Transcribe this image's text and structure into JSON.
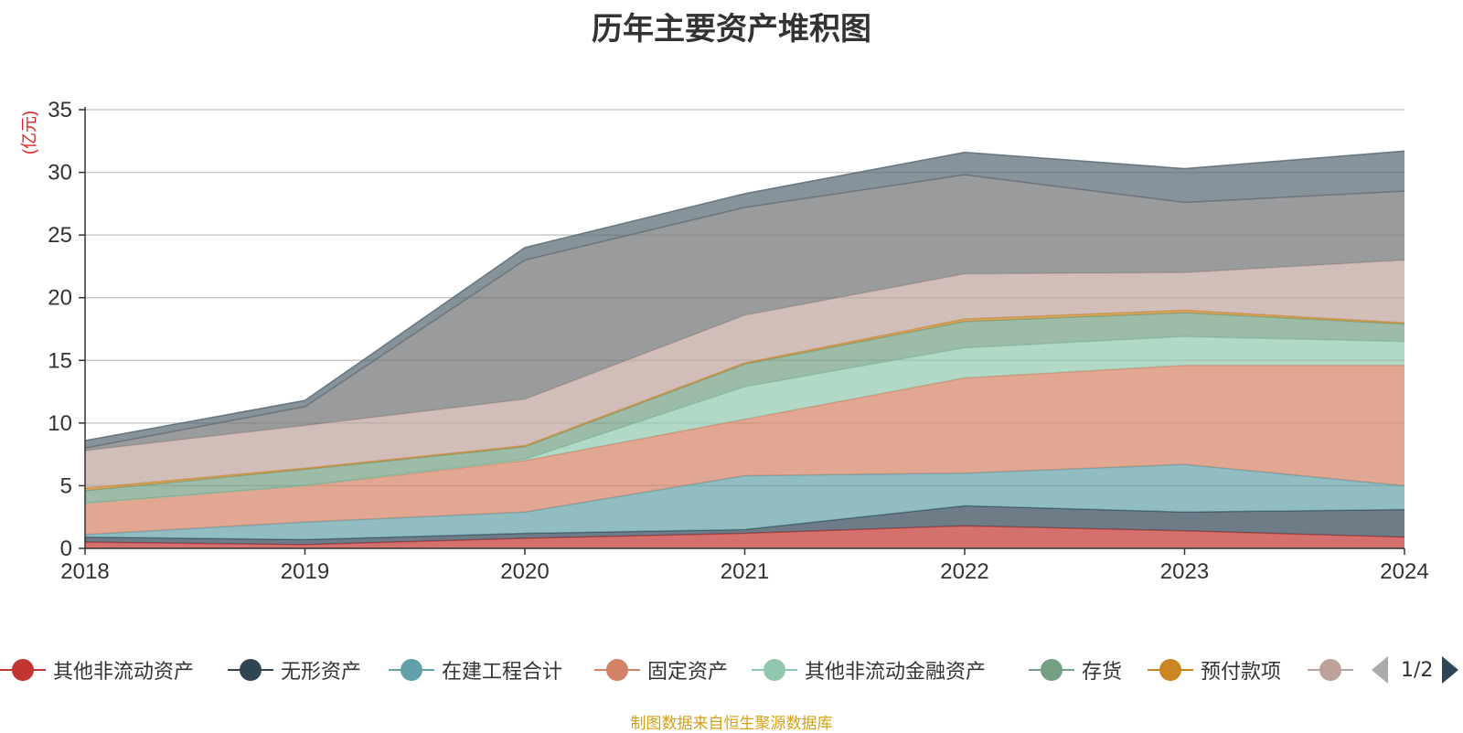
{
  "chart_data": {
    "type": "area",
    "stacked": true,
    "title": "历年主要资产堆积图",
    "unit_label": "(亿元)",
    "x": [
      "2018",
      "2019",
      "2020",
      "2021",
      "2022",
      "2023",
      "2024"
    ],
    "ylim": [
      0,
      35
    ],
    "yticks": [
      "0",
      "5",
      "10",
      "15",
      "20",
      "25",
      "30",
      "35"
    ],
    "grid": true,
    "legend_position": "bottom",
    "series": [
      {
        "name": "其他非流动资产",
        "color": "#c23531",
        "values": [
          0.5,
          0.3,
          0.8,
          1.2,
          1.8,
          1.4,
          0.9
        ]
      },
      {
        "name": "无形资产",
        "color": "#2f4554",
        "values": [
          0.4,
          0.4,
          0.4,
          0.3,
          1.6,
          1.5,
          2.2
        ]
      },
      {
        "name": "在建工程合计",
        "color": "#61a0a8",
        "values": [
          0.2,
          1.4,
          1.7,
          4.3,
          2.6,
          3.8,
          1.9
        ]
      },
      {
        "name": "固定资产",
        "color": "#d48265",
        "values": [
          2.5,
          2.9,
          4.1,
          4.5,
          7.6,
          7.9,
          9.6
        ]
      },
      {
        "name": "其他非流动金融资产",
        "color": "#91c7ae",
        "values": [
          0.0,
          0.0,
          0.1,
          2.6,
          2.4,
          2.3,
          1.9
        ]
      },
      {
        "name": "存货",
        "color": "#749f83",
        "values": [
          1.0,
          1.3,
          1.0,
          1.8,
          2.1,
          1.9,
          1.4
        ]
      },
      {
        "name": "预付款项",
        "color": "#ca8622",
        "values": [
          0.2,
          0.1,
          0.1,
          0.1,
          0.2,
          0.2,
          0.1
        ]
      },
      {
        "name": "",
        "color": "#bda29a",
        "values": [
          3.0,
          3.4,
          3.7,
          3.8,
          3.6,
          3.0,
          5.0
        ]
      },
      {
        "name": "",
        "color": "#6e7074",
        "values": [
          0.2,
          1.5,
          11.1,
          8.6,
          7.9,
          5.6,
          5.5
        ]
      },
      {
        "name": "",
        "color": "#546570",
        "values": [
          0.6,
          0.5,
          1.0,
          1.1,
          1.8,
          2.7,
          3.2
        ]
      }
    ],
    "legend_visible_count": 8,
    "legend_page": "1/2",
    "source_note": "制图数据来自恒生聚源数据库"
  }
}
